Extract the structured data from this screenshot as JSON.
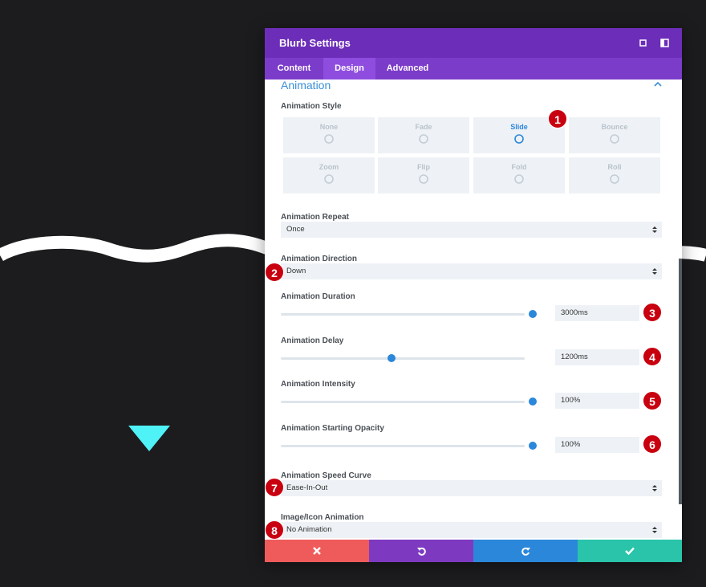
{
  "header": {
    "title": "Blurb Settings"
  },
  "tabs": [
    "Content",
    "Design",
    "Advanced"
  ],
  "section": {
    "title": "Animation"
  },
  "style_field": {
    "label": "Animation Style",
    "options": [
      "None",
      "Fade",
      "Slide",
      "Bounce",
      "Zoom",
      "Flip",
      "Fold",
      "Roll"
    ]
  },
  "selects": [
    {
      "label": "Animation Repeat",
      "value": "Once"
    },
    {
      "label": "Animation Direction",
      "value": "Down"
    },
    {
      "label": "Animation Speed Curve",
      "value": "Ease-In-Out"
    },
    {
      "label": "Image/Icon Animation",
      "value": "No Animation"
    }
  ],
  "sliders": [
    {
      "label": "Animation Duration",
      "value": "3000ms"
    },
    {
      "label": "Animation Delay",
      "value": "1200ms"
    },
    {
      "label": "Animation Intensity",
      "value": "100%"
    },
    {
      "label": "Animation Starting Opacity",
      "value": "100%"
    }
  ],
  "badges": [
    "1",
    "2",
    "3",
    "4",
    "5",
    "6",
    "7",
    "8"
  ]
}
